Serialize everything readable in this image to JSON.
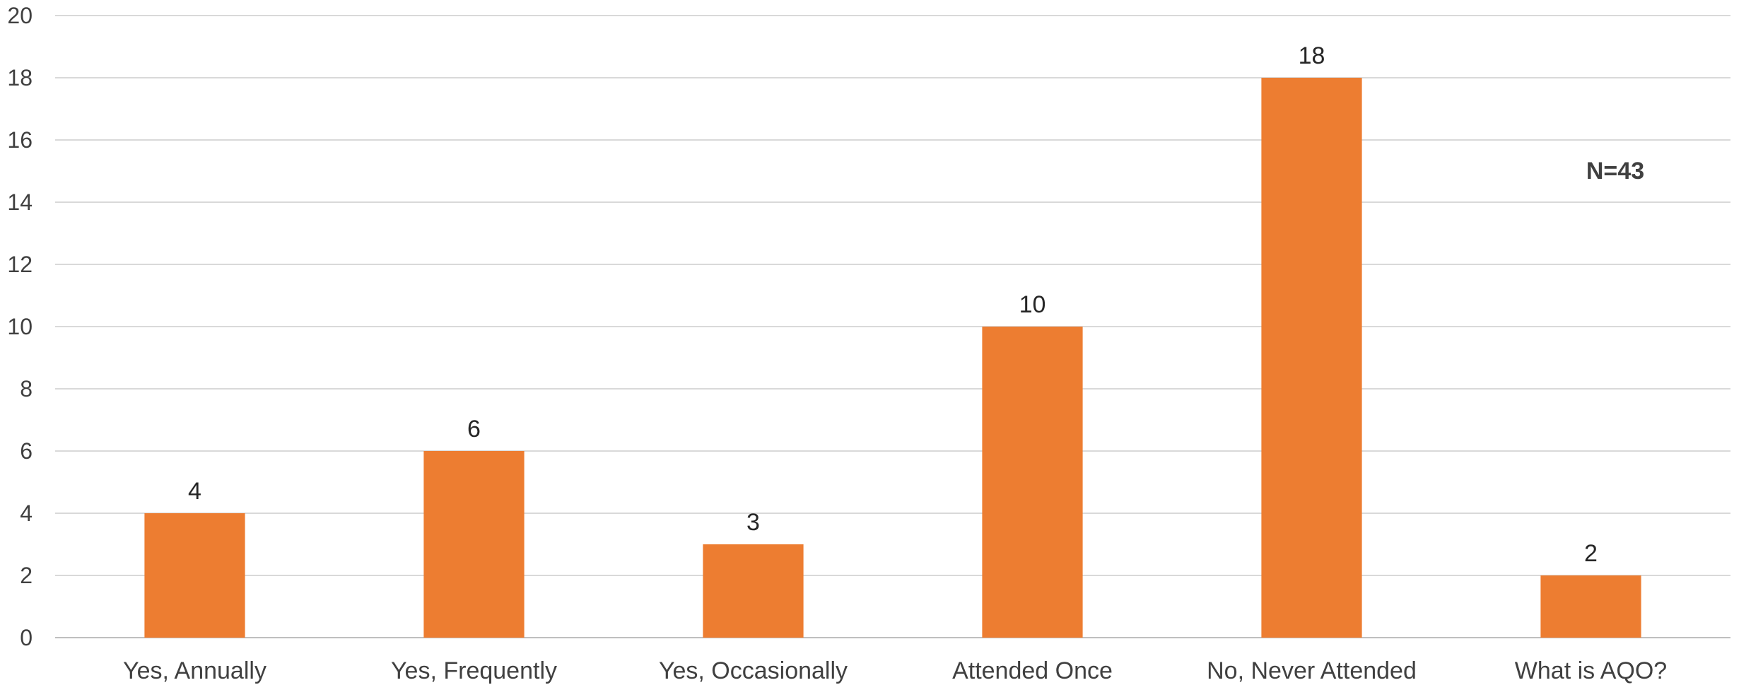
{
  "chart_data": {
    "type": "bar",
    "categories": [
      "Yes, Annually",
      "Yes, Frequently",
      "Yes, Occasionally",
      "Attended Once",
      "No, Never Attended",
      "What is AQO?"
    ],
    "values": [
      4,
      6,
      3,
      10,
      18,
      2
    ],
    "data_labels": [
      "4",
      "6",
      "3",
      "10",
      "18",
      "2"
    ],
    "y_ticks": [
      "0",
      "2",
      "4",
      "6",
      "8",
      "10",
      "12",
      "14",
      "16",
      "18",
      "20"
    ],
    "ylim": [
      0,
      20
    ],
    "y_step": 2,
    "grid": true,
    "legend": "none",
    "annotation": "N=43",
    "colors": {
      "bar": "#ED7D31",
      "grid": "#D9D9D9",
      "axis": "#BFBFBF",
      "text": "#404040"
    }
  }
}
